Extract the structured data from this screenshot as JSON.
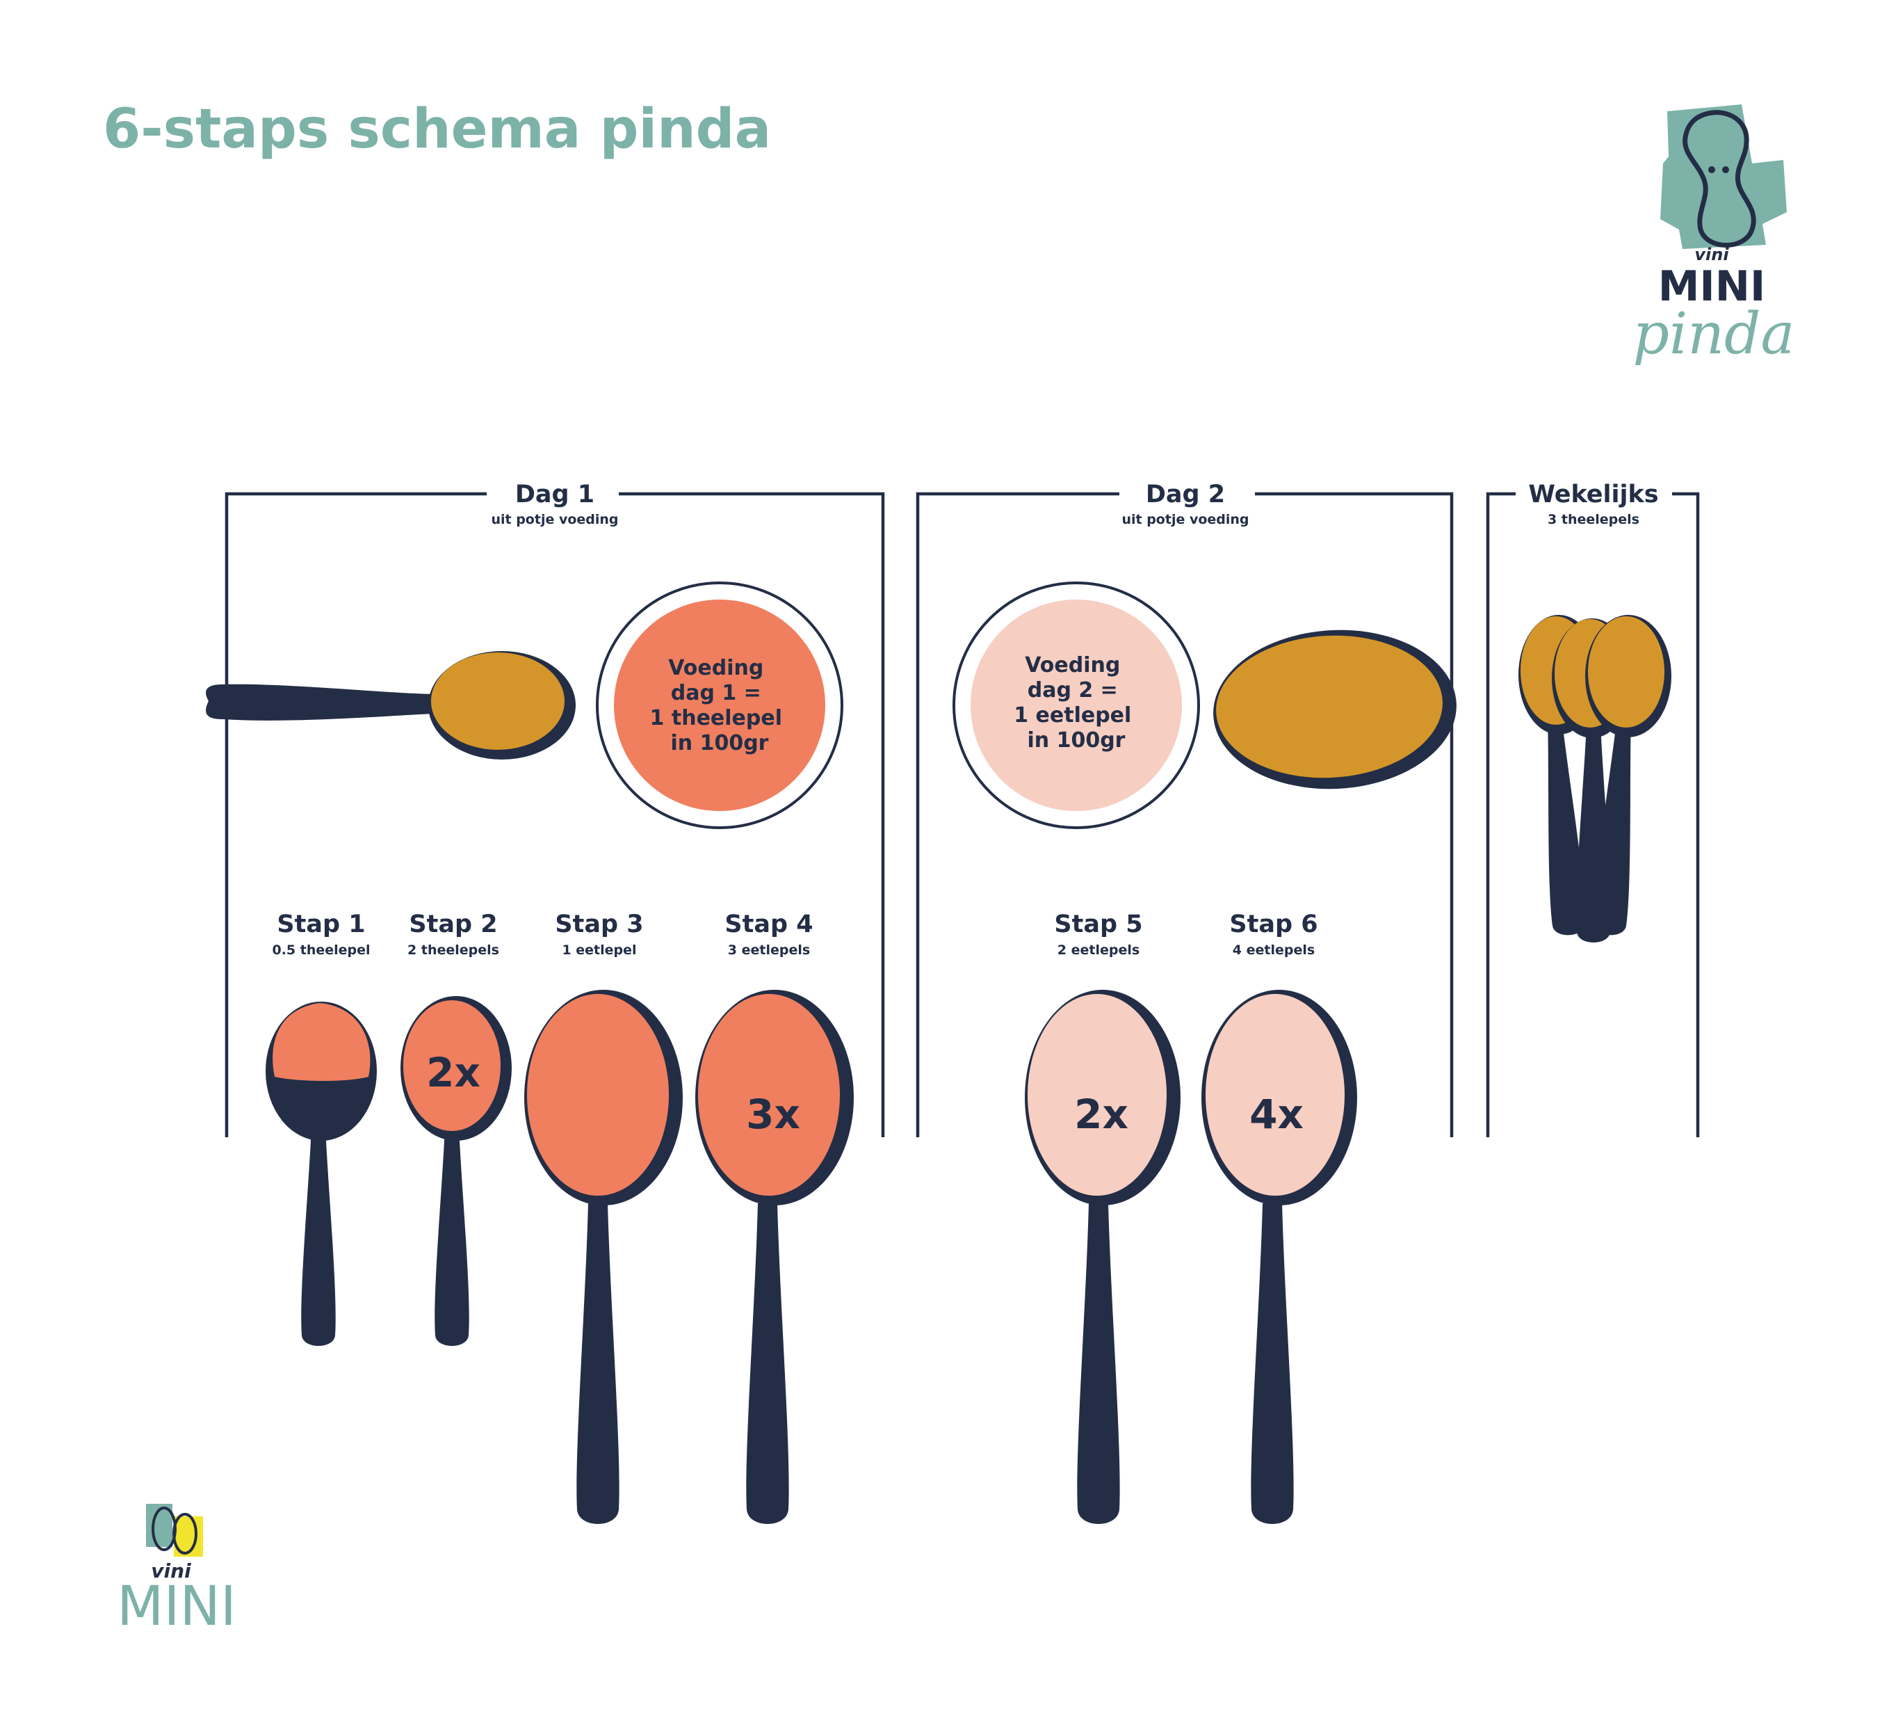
{
  "title": "6-staps schema pinda",
  "brand": {
    "small_word": "vini",
    "wordmark": "MINI",
    "script_word": "pinda",
    "registered": "®"
  },
  "sections": [
    {
      "heading": "Dag 1",
      "sub": "uit potje voeding"
    },
    {
      "heading": "Dag 2",
      "sub": "uit potje voeding"
    },
    {
      "heading": "Wekelijks",
      "sub": "3 theelepels"
    }
  ],
  "bowls": [
    {
      "lines": [
        "Voeding",
        "dag 1 =",
        "1 theelepel",
        "in 100gr"
      ]
    },
    {
      "lines": [
        "Voeding",
        "dag 2 =",
        "1 eetlepel",
        "in 100gr"
      ]
    }
  ],
  "steps": [
    {
      "label": "Stap 1",
      "amount": "0.5 theelepel",
      "mult": ""
    },
    {
      "label": "Stap 2",
      "amount": "2 theelepels",
      "mult": "2x"
    },
    {
      "label": "Stap 3",
      "amount": "1 eetlepel",
      "mult": ""
    },
    {
      "label": "Stap 4",
      "amount": "3 eetlepels",
      "mult": "3x"
    },
    {
      "label": "Stap 5",
      "amount": "2 eetlepels",
      "mult": "2x"
    },
    {
      "label": "Stap 6",
      "amount": "4 eetlepels",
      "mult": "4x"
    }
  ],
  "colors": {
    "teal": "#7db2a8",
    "navy": "#232e46",
    "coral": "#f07f5f",
    "blush": "#f7cec2",
    "mustard": "#d4962a",
    "yellow": "#f1e42f"
  }
}
